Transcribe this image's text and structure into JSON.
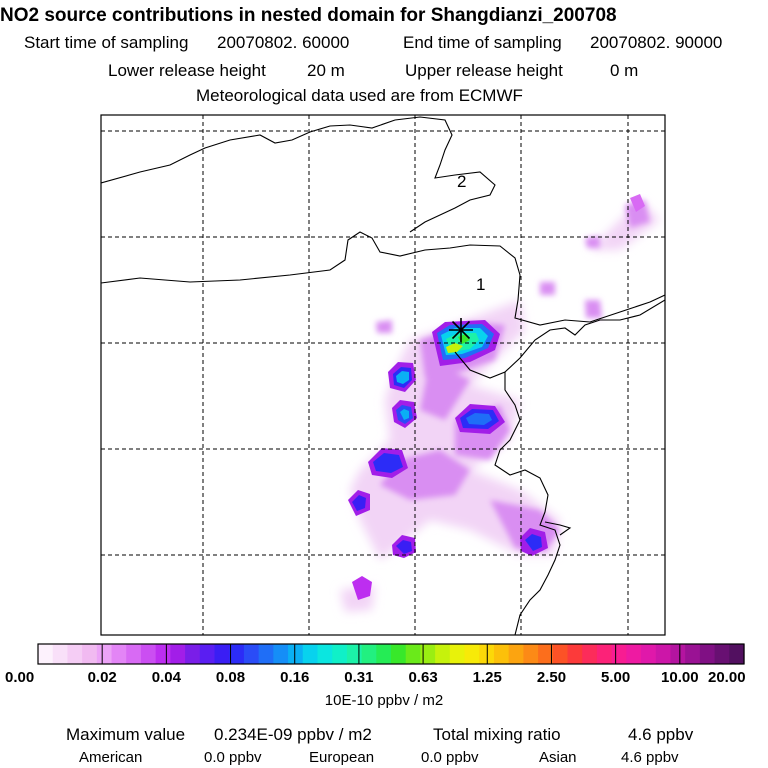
{
  "title": "NO2 source contributions in nested domain for Shangdianzi_200708",
  "header": {
    "start_label": "Start time of sampling",
    "start_value": "20070802. 60000",
    "end_label": "End time of sampling",
    "end_value": "20070802. 90000",
    "lower_label": "Lower release height",
    "lower_value": "20 m",
    "upper_label": "Upper release height",
    "upper_value": "0 m",
    "met_line": "Meteorological data used are from ECMWF"
  },
  "map": {
    "markers": [
      "1",
      "2"
    ],
    "receptor_icon": "asterisk-icon"
  },
  "chart_data": {
    "type": "heatmap",
    "title": "NO2 source contributions in nested domain for Shangdianzi_200708",
    "colorbar": {
      "tick_labels": [
        "0.00",
        "0.02",
        "0.04",
        "0.08",
        "0.16",
        "0.31",
        "0.63",
        "1.25",
        "2.50",
        "5.00",
        "10.00",
        "20.00"
      ],
      "units_label": "10E-10 ppbv / m2",
      "colors": [
        "#fdf2fd",
        "#f9e0f9",
        "#f5cdf5",
        "#f1baf1",
        "#eca3f7",
        "#e385f6",
        "#d86af4",
        "#cb4ef2",
        "#bd2ef0",
        "#a21ee8",
        "#7a1ee8",
        "#5a1ef2",
        "#3a1ef4",
        "#2c2cf7",
        "#2a4cf7",
        "#1f6ef7",
        "#158ef7",
        "#0ab0f4",
        "#08d2ee",
        "#0be6e0",
        "#10f0c8",
        "#1cf2a8",
        "#22f080",
        "#25ec55",
        "#38e82a",
        "#6aea1a",
        "#9aee12",
        "#c6f20c",
        "#e8f20a",
        "#f7ea08",
        "#fcd808",
        "#fcc00a",
        "#fca410",
        "#fc8a16",
        "#fc6e1c",
        "#fc5226",
        "#fc3a3a",
        "#fc2c5a",
        "#fc2278",
        "#f81c92",
        "#ee1aa2",
        "#e018aa",
        "#cc16a8",
        "#b414a0",
        "#9a1294",
        "#801084",
        "#681072",
        "#521060"
      ]
    },
    "summary": {
      "max_label": "Maximum value",
      "max_value": "0.234E-09 ppbv / m2",
      "total_label": "Total mixing ratio",
      "total_value": "4.6 ppbv",
      "regions": [
        {
          "name": "American",
          "value": "0.0 ppbv"
        },
        {
          "name": "European",
          "value": "0.0 ppbv"
        },
        {
          "name": "Asian",
          "value": "4.6 ppbv"
        }
      ]
    }
  }
}
